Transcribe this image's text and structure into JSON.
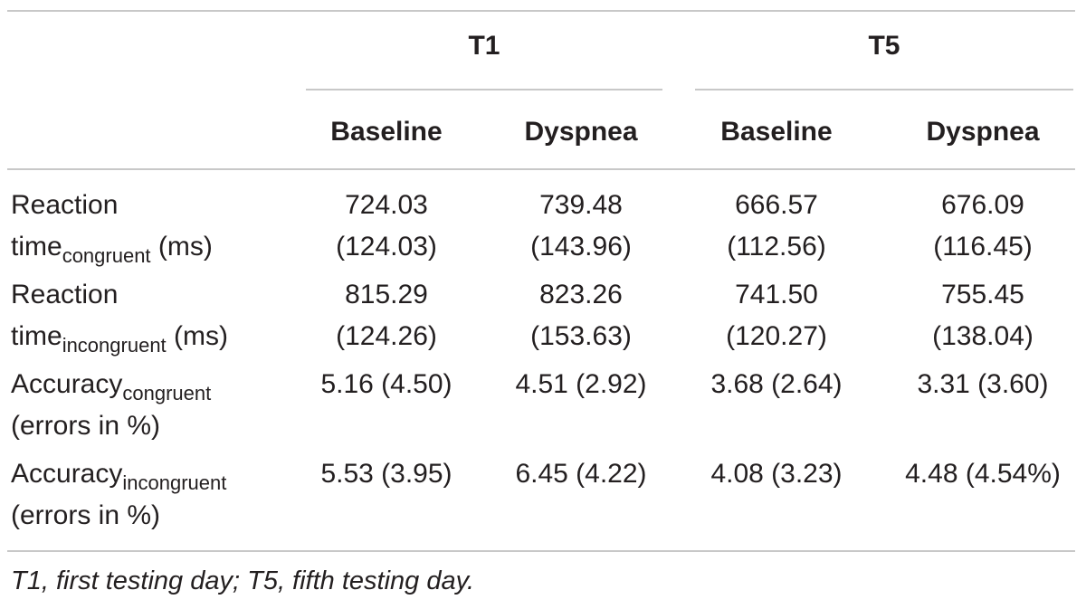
{
  "groups": [
    {
      "label": "T1"
    },
    {
      "label": "T5"
    }
  ],
  "columns": [
    "Baseline",
    "Dyspnea",
    "Baseline",
    "Dyspnea"
  ],
  "rows": [
    {
      "label_line1": "Reaction",
      "label_main": "time",
      "label_sub": "congruent",
      "label_suffix": " (ms)",
      "label_line2_plain": "",
      "cells": [
        [
          "724.03",
          "(124.03)"
        ],
        [
          "739.48",
          "(143.96)"
        ],
        [
          "666.57",
          "(112.56)"
        ],
        [
          "676.09",
          "(116.45)"
        ]
      ]
    },
    {
      "label_line1": "Reaction",
      "label_main": "time",
      "label_sub": "incongruent",
      "label_suffix": " (ms)",
      "label_line2_plain": "",
      "cells": [
        [
          "815.29",
          "(124.26)"
        ],
        [
          "823.26",
          "(153.63)"
        ],
        [
          "741.50",
          "(120.27)"
        ],
        [
          "755.45",
          "(138.04)"
        ]
      ]
    },
    {
      "label_main": "Accuracy",
      "label_sub": "congruent",
      "label_line2_plain": "(errors in %)",
      "cells": [
        [
          "5.16 (4.50)"
        ],
        [
          "4.51 (2.92)"
        ],
        [
          "3.68 (2.64)"
        ],
        [
          "3.31 (3.60)"
        ]
      ]
    },
    {
      "label_main": "Accuracy",
      "label_sub": "incongruent",
      "label_line2_plain": "(errors in %)",
      "cells": [
        [
          "5.53 (3.95)"
        ],
        [
          "6.45 (4.22)"
        ],
        [
          "4.08 (3.23)"
        ],
        [
          "4.48 (4.54%)"
        ]
      ]
    }
  ],
  "footnote": "T1, first testing day; T5, fifth testing day."
}
